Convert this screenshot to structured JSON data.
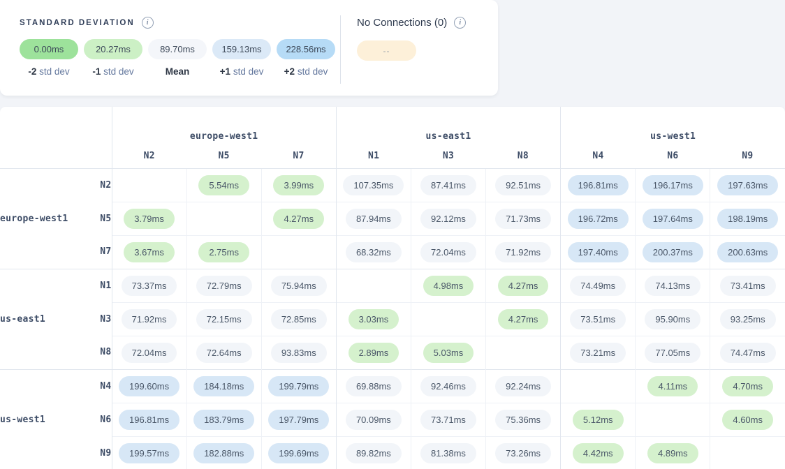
{
  "legend": {
    "title": "STANDARD DEVIATION",
    "items": [
      {
        "value": "0.00ms",
        "label_strong": "-2",
        "label_rest": "std dev",
        "color": "#9de29b"
      },
      {
        "value": "20.27ms",
        "label_strong": "-1",
        "label_rest": "std dev",
        "color": "#ccf0c5"
      },
      {
        "value": "89.70ms",
        "label_strong": "Mean",
        "label_rest": "",
        "color": "#f4f6fa"
      },
      {
        "value": "159.13ms",
        "label_strong": "+1",
        "label_rest": "std dev",
        "color": "#dbe9f7"
      },
      {
        "value": "228.56ms",
        "label_strong": "+2",
        "label_rest": "std dev",
        "color": "#b6dbf6"
      }
    ]
  },
  "no_connections": {
    "title": "No Connections (0)",
    "pill_value": "--",
    "pill_color": "#fdf0d9"
  },
  "matrix": {
    "thresholds": {
      "low_max": 20.27,
      "high_min": 159.13
    },
    "cell_colors": {
      "low": "#d5f1cd",
      "mid": "#f2f5f9",
      "high": "#d7e7f6"
    },
    "column_groups": [
      {
        "region": "europe-west1",
        "nodes": [
          "N2",
          "N5",
          "N7"
        ]
      },
      {
        "region": "us-east1",
        "nodes": [
          "N1",
          "N3",
          "N8"
        ]
      },
      {
        "region": "us-west1",
        "nodes": [
          "N4",
          "N6",
          "N9"
        ]
      }
    ],
    "row_groups": [
      {
        "region": "europe-west1",
        "rows": [
          {
            "node": "N2",
            "values": [
              "",
              "5.54ms",
              "3.99ms",
              "107.35ms",
              "87.41ms",
              "92.51ms",
              "196.81ms",
              "196.17ms",
              "197.63ms"
            ]
          },
          {
            "node": "N5",
            "values": [
              "3.79ms",
              "",
              "4.27ms",
              "87.94ms",
              "92.12ms",
              "71.73ms",
              "196.72ms",
              "197.64ms",
              "198.19ms"
            ]
          },
          {
            "node": "N7",
            "values": [
              "3.67ms",
              "2.75ms",
              "",
              "68.32ms",
              "72.04ms",
              "71.92ms",
              "197.40ms",
              "200.37ms",
              "200.63ms"
            ]
          }
        ]
      },
      {
        "region": "us-east1",
        "rows": [
          {
            "node": "N1",
            "values": [
              "73.37ms",
              "72.79ms",
              "75.94ms",
              "",
              "4.98ms",
              "4.27ms",
              "74.49ms",
              "74.13ms",
              "73.41ms"
            ]
          },
          {
            "node": "N3",
            "values": [
              "71.92ms",
              "72.15ms",
              "72.85ms",
              "3.03ms",
              "",
              "4.27ms",
              "73.51ms",
              "95.90ms",
              "93.25ms"
            ]
          },
          {
            "node": "N8",
            "values": [
              "72.04ms",
              "72.64ms",
              "93.83ms",
              "2.89ms",
              "5.03ms",
              "",
              "73.21ms",
              "77.05ms",
              "74.47ms"
            ]
          }
        ]
      },
      {
        "region": "us-west1",
        "rows": [
          {
            "node": "N4",
            "values": [
              "199.60ms",
              "184.18ms",
              "199.79ms",
              "69.88ms",
              "92.46ms",
              "92.24ms",
              "",
              "4.11ms",
              "4.70ms"
            ]
          },
          {
            "node": "N6",
            "values": [
              "196.81ms",
              "183.79ms",
              "197.79ms",
              "70.09ms",
              "73.71ms",
              "75.36ms",
              "5.12ms",
              "",
              "4.60ms"
            ]
          },
          {
            "node": "N9",
            "values": [
              "199.57ms",
              "182.88ms",
              "199.69ms",
              "89.82ms",
              "81.38ms",
              "73.26ms",
              "4.42ms",
              "4.89ms",
              ""
            ]
          }
        ]
      }
    ]
  }
}
